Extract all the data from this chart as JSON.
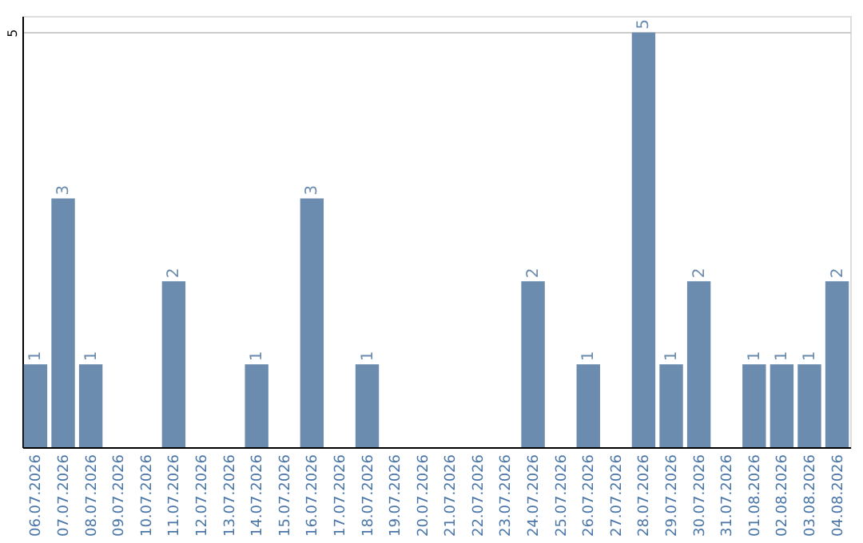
{
  "chart_data": {
    "type": "bar",
    "categories": [
      "06.07.2026",
      "07.07.2026",
      "08.07.2026",
      "09.07.2026",
      "10.07.2026",
      "11.07.2026",
      "12.07.2026",
      "13.07.2026",
      "14.07.2026",
      "15.07.2026",
      "16.07.2026",
      "17.07.2026",
      "18.07.2026",
      "19.07.2026",
      "20.07.2026",
      "21.07.2026",
      "22.07.2026",
      "23.07.2026",
      "24.07.2026",
      "25.07.2026",
      "26.07.2026",
      "27.07.2026",
      "28.07.2026",
      "29.07.2026",
      "30.07.2026",
      "31.07.2026",
      "01.08.2026",
      "02.08.2026",
      "03.08.2026",
      "04.08.2026"
    ],
    "values": [
      1,
      3,
      1,
      0,
      0,
      2,
      0,
      0,
      1,
      0,
      3,
      0,
      1,
      0,
      0,
      0,
      0,
      0,
      2,
      0,
      1,
      0,
      5,
      1,
      2,
      0,
      1,
      1,
      1,
      2
    ],
    "value_labels": [
      "1",
      "3",
      "1",
      null,
      null,
      "2",
      null,
      null,
      "1",
      null,
      "3",
      null,
      "1",
      null,
      null,
      null,
      null,
      null,
      "2",
      null,
      "1",
      null,
      "5",
      "1",
      "2",
      null,
      "1",
      "1",
      "1",
      "2"
    ],
    "color": "#6b8cae",
    "ylim": [
      0,
      5.2
    ],
    "yticks": [
      5
    ],
    "grid": "y"
  }
}
